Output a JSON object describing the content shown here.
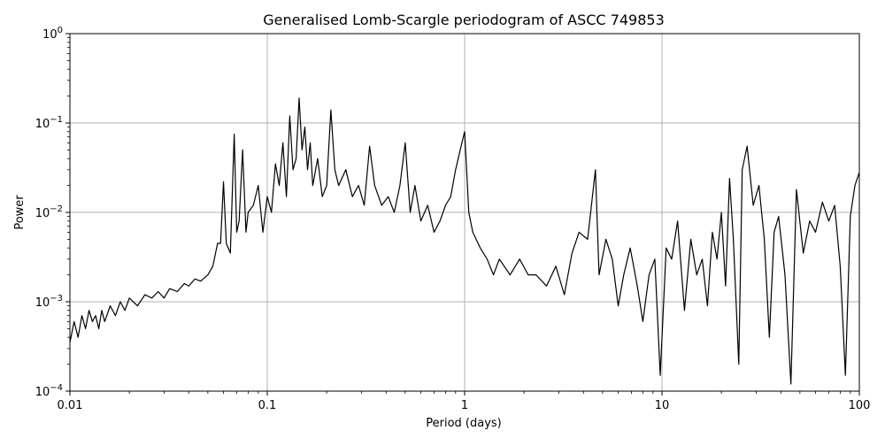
{
  "chart_data": {
    "type": "line",
    "title": "Generalised Lomb-Scargle periodogram of ASCC 749853",
    "xlabel": "Period (days)",
    "ylabel": "Power",
    "xscale": "log",
    "yscale": "log",
    "xlim": [
      0.01,
      100
    ],
    "ylim": [
      0.0001,
      1
    ],
    "grid": true,
    "line_color": "#000000",
    "x_ticks": [
      {
        "value": 0.01,
        "label": "0.01"
      },
      {
        "value": 0.1,
        "label": "0.1"
      },
      {
        "value": 1,
        "label": "1"
      },
      {
        "value": 10,
        "label": "10"
      },
      {
        "value": 100,
        "label": "100"
      }
    ],
    "y_ticks": [
      {
        "value": 0.0001,
        "base": "10",
        "exp": "−4"
      },
      {
        "value": 0.001,
        "base": "10",
        "exp": "−3"
      },
      {
        "value": 0.01,
        "base": "10",
        "exp": "−2"
      },
      {
        "value": 0.1,
        "base": "10",
        "exp": "−1"
      },
      {
        "value": 1,
        "base": "10",
        "exp": "0"
      }
    ],
    "series": [
      {
        "values": [
          [
            0.01,
            0.00035
          ],
          [
            0.0105,
            0.0006
          ],
          [
            0.011,
            0.0004
          ],
          [
            0.0115,
            0.0007
          ],
          [
            0.012,
            0.0005
          ],
          [
            0.0125,
            0.0008
          ],
          [
            0.013,
            0.0006
          ],
          [
            0.0135,
            0.0007
          ],
          [
            0.014,
            0.0005
          ],
          [
            0.0145,
            0.0008
          ],
          [
            0.015,
            0.0006
          ],
          [
            0.016,
            0.0009
          ],
          [
            0.017,
            0.0007
          ],
          [
            0.018,
            0.001
          ],
          [
            0.019,
            0.0008
          ],
          [
            0.02,
            0.0011
          ],
          [
            0.022,
            0.0009
          ],
          [
            0.024,
            0.0012
          ],
          [
            0.026,
            0.0011
          ],
          [
            0.028,
            0.0013
          ],
          [
            0.03,
            0.0011
          ],
          [
            0.032,
            0.0014
          ],
          [
            0.035,
            0.0013
          ],
          [
            0.038,
            0.0016
          ],
          [
            0.04,
            0.0015
          ],
          [
            0.043,
            0.0018
          ],
          [
            0.046,
            0.0017
          ],
          [
            0.05,
            0.002
          ],
          [
            0.053,
            0.0025
          ],
          [
            0.056,
            0.0045
          ],
          [
            0.058,
            0.0045
          ],
          [
            0.06,
            0.022
          ],
          [
            0.062,
            0.0045
          ],
          [
            0.065,
            0.0035
          ],
          [
            0.068,
            0.075
          ],
          [
            0.07,
            0.006
          ],
          [
            0.072,
            0.008
          ],
          [
            0.075,
            0.05
          ],
          [
            0.078,
            0.006
          ],
          [
            0.08,
            0.01
          ],
          [
            0.085,
            0.012
          ],
          [
            0.09,
            0.02
          ],
          [
            0.095,
            0.006
          ],
          [
            0.1,
            0.015
          ],
          [
            0.105,
            0.01
          ],
          [
            0.11,
            0.035
          ],
          [
            0.115,
            0.02
          ],
          [
            0.12,
            0.06
          ],
          [
            0.125,
            0.015
          ],
          [
            0.13,
            0.12
          ],
          [
            0.135,
            0.03
          ],
          [
            0.14,
            0.04
          ],
          [
            0.145,
            0.19
          ],
          [
            0.15,
            0.05
          ],
          [
            0.155,
            0.09
          ],
          [
            0.16,
            0.03
          ],
          [
            0.165,
            0.06
          ],
          [
            0.17,
            0.02
          ],
          [
            0.18,
            0.04
          ],
          [
            0.19,
            0.015
          ],
          [
            0.2,
            0.02
          ],
          [
            0.21,
            0.14
          ],
          [
            0.22,
            0.03
          ],
          [
            0.23,
            0.02
          ],
          [
            0.25,
            0.03
          ],
          [
            0.27,
            0.015
          ],
          [
            0.29,
            0.02
          ],
          [
            0.31,
            0.012
          ],
          [
            0.33,
            0.055
          ],
          [
            0.35,
            0.02
          ],
          [
            0.38,
            0.012
          ],
          [
            0.41,
            0.015
          ],
          [
            0.44,
            0.01
          ],
          [
            0.47,
            0.02
          ],
          [
            0.5,
            0.06
          ],
          [
            0.53,
            0.01
          ],
          [
            0.56,
            0.02
          ],
          [
            0.6,
            0.008
          ],
          [
            0.65,
            0.012
          ],
          [
            0.7,
            0.006
          ],
          [
            0.75,
            0.008
          ],
          [
            0.8,
            0.012
          ],
          [
            0.85,
            0.015
          ],
          [
            0.9,
            0.03
          ],
          [
            0.95,
            0.05
          ],
          [
            1.0,
            0.08
          ],
          [
            1.05,
            0.01
          ],
          [
            1.1,
            0.006
          ],
          [
            1.2,
            0.004
          ],
          [
            1.3,
            0.003
          ],
          [
            1.4,
            0.002
          ],
          [
            1.5,
            0.003
          ],
          [
            1.7,
            0.002
          ],
          [
            1.9,
            0.003
          ],
          [
            2.1,
            0.002
          ],
          [
            2.3,
            0.002
          ],
          [
            2.6,
            0.0015
          ],
          [
            2.9,
            0.0025
          ],
          [
            3.2,
            0.0012
          ],
          [
            3.5,
            0.0035
          ],
          [
            3.8,
            0.006
          ],
          [
            4.2,
            0.005
          ],
          [
            4.6,
            0.03
          ],
          [
            4.8,
            0.002
          ],
          [
            5.2,
            0.005
          ],
          [
            5.6,
            0.003
          ],
          [
            6.0,
            0.0009
          ],
          [
            6.4,
            0.002
          ],
          [
            6.9,
            0.004
          ],
          [
            7.5,
            0.0015
          ],
          [
            8.0,
            0.0006
          ],
          [
            8.6,
            0.002
          ],
          [
            9.2,
            0.003
          ],
          [
            9.8,
            0.00015
          ],
          [
            10.5,
            0.004
          ],
          [
            11.2,
            0.003
          ],
          [
            12.0,
            0.008
          ],
          [
            13.0,
            0.0008
          ],
          [
            14.0,
            0.005
          ],
          [
            15.0,
            0.002
          ],
          [
            16.0,
            0.003
          ],
          [
            17.0,
            0.0009
          ],
          [
            18.0,
            0.006
          ],
          [
            19.0,
            0.003
          ],
          [
            20.0,
            0.01
          ],
          [
            21.0,
            0.0015
          ],
          [
            22.0,
            0.024
          ],
          [
            23.0,
            0.005
          ],
          [
            24.5,
            0.0002
          ],
          [
            25.5,
            0.03
          ],
          [
            27.0,
            0.055
          ],
          [
            29.0,
            0.012
          ],
          [
            31.0,
            0.02
          ],
          [
            33.0,
            0.005
          ],
          [
            35.0,
            0.0004
          ],
          [
            37.0,
            0.006
          ],
          [
            39.0,
            0.009
          ],
          [
            42.0,
            0.002
          ],
          [
            45.0,
            0.00012
          ],
          [
            48.0,
            0.018
          ],
          [
            52.0,
            0.0035
          ],
          [
            56.0,
            0.008
          ],
          [
            60.0,
            0.006
          ],
          [
            65.0,
            0.013
          ],
          [
            70.0,
            0.008
          ],
          [
            75.0,
            0.012
          ],
          [
            80.0,
            0.0025
          ],
          [
            85.0,
            0.00015
          ],
          [
            90.0,
            0.009
          ],
          [
            95.0,
            0.02
          ],
          [
            100.0,
            0.028
          ]
        ]
      }
    ]
  }
}
